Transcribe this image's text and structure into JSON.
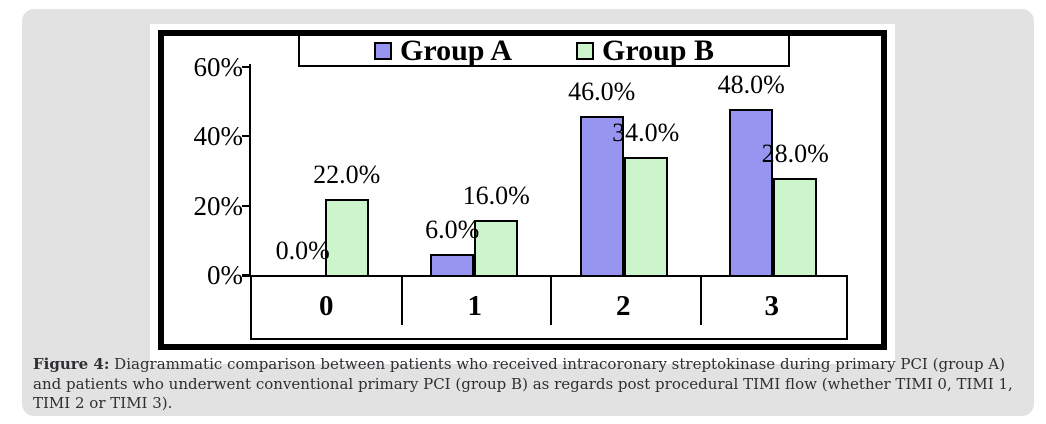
{
  "figure": {
    "caption_label": "Figure 4:",
    "caption_text": "Diagrammatic comparison between patients who received intracoronary streptokinase during primary PCI (group A) and patients who underwent conventional primary PCI (group B) as regards post procedural TIMI flow (whether TIMI 0, TIMI 1, TIMI 2 or TIMI 3)."
  },
  "chart_data": {
    "type": "bar",
    "title": "",
    "xlabel": "",
    "ylabel": "",
    "categories": [
      "0",
      "1",
      "2",
      "3"
    ],
    "series": [
      {
        "name": "Group A",
        "color": "#9795ef",
        "values": [
          0.0,
          6.0,
          46.0,
          48.0
        ],
        "labels": [
          "0.0%",
          "6.0%",
          "46.0%",
          "48.0%"
        ]
      },
      {
        "name": "Group B",
        "color": "#ccf5cc",
        "values": [
          22.0,
          16.0,
          34.0,
          28.0
        ],
        "labels": [
          "22.0%",
          "16.0%",
          "34.0%",
          "28.0%"
        ]
      }
    ],
    "ylim": [
      0,
      60
    ],
    "ytick_values": [
      0,
      20,
      40,
      60
    ],
    "ytick_labels": [
      "0%",
      "20%",
      "40%",
      "60%"
    ],
    "grid": false,
    "legend_position": "top",
    "bar_border_color": "#000000",
    "colors": {
      "card_background": "#e2e2e2",
      "chart_background": "#ffffff",
      "axis": "#000000",
      "caption_text": "#2e2e33"
    }
  }
}
